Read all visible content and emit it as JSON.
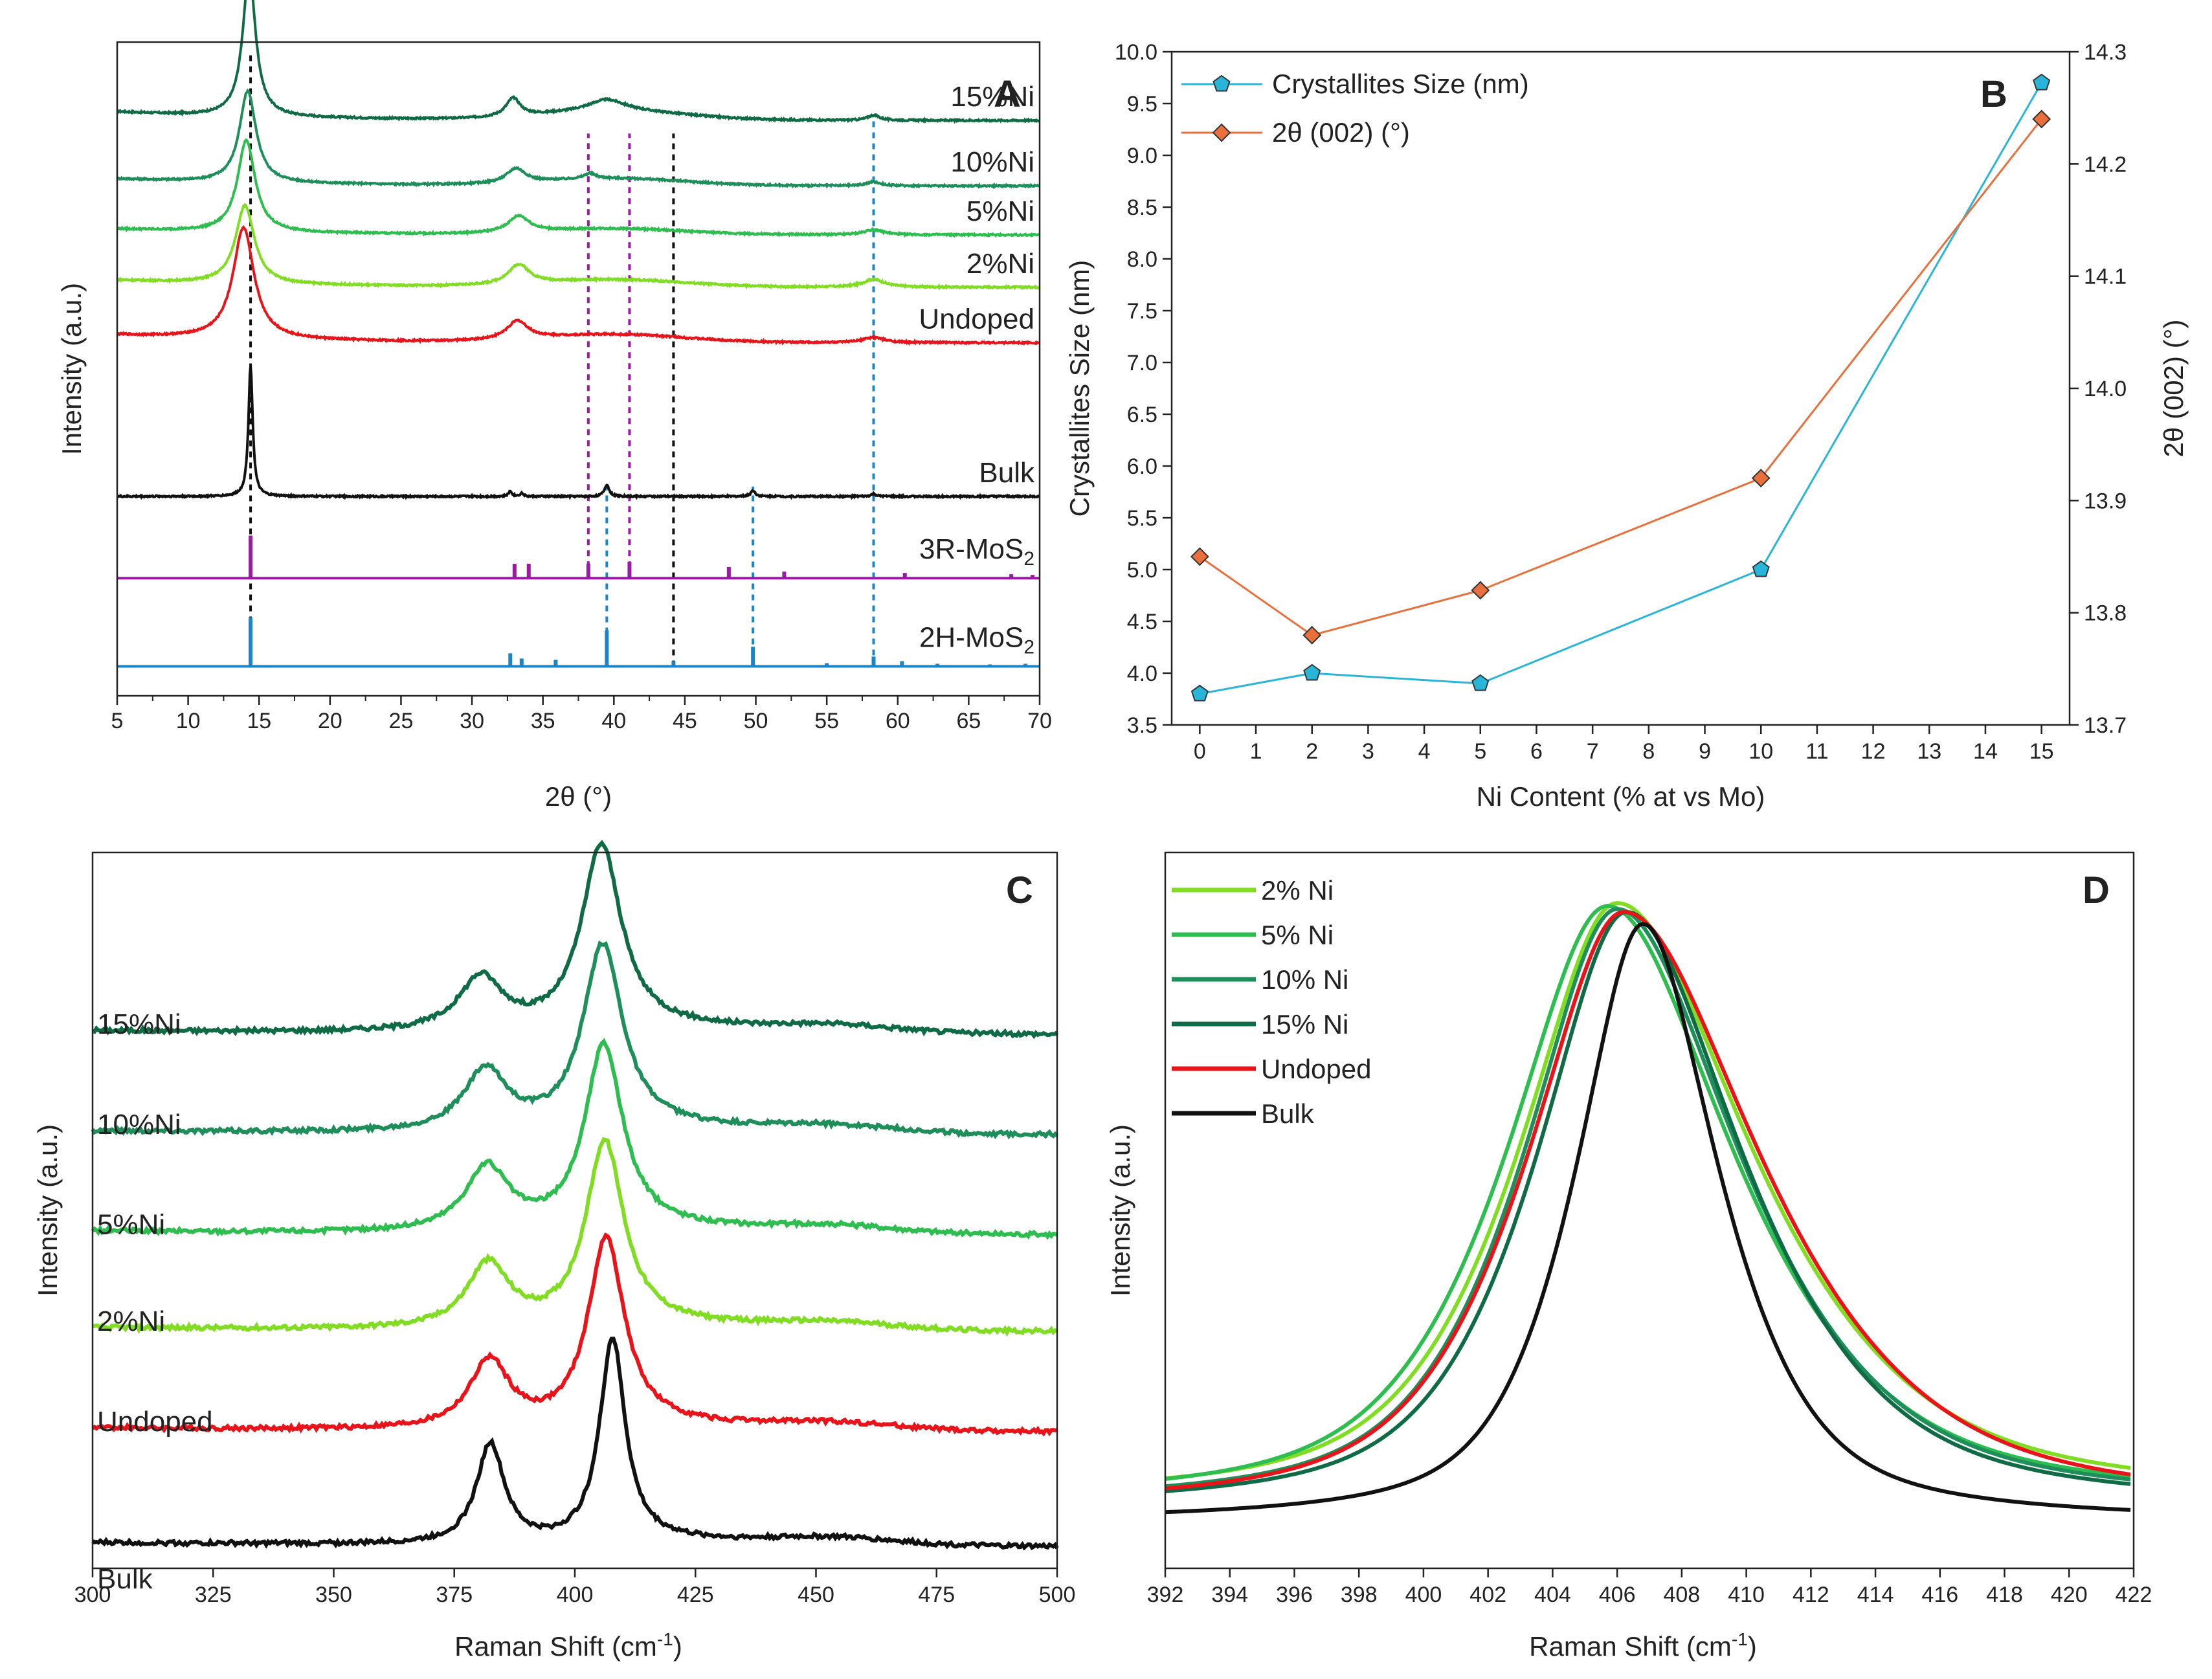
{
  "chart_data": [
    {
      "panel": "A",
      "type": "line",
      "title": "A",
      "xlabel": "2θ (°)",
      "ylabel": "Intensity (a.u.)",
      "xlim": [
        5,
        70
      ],
      "xticks": [
        5,
        10,
        15,
        20,
        25,
        30,
        35,
        40,
        45,
        50,
        55,
        60,
        65,
        70
      ],
      "series": [
        {
          "name": "15%Ni",
          "label": "15%Ni",
          "color": "#0f6b45",
          "baseline": 0.88,
          "peaks": [
            {
              "x": 14.3,
              "h": 0.22,
              "w": 0.55
            },
            {
              "x": 32.9,
              "h": 0.028,
              "w": 0.6
            },
            {
              "x": 39.5,
              "h": 0.018,
              "w": 1.6
            },
            {
              "x": 58.3,
              "h": 0.008,
              "w": 0.5
            }
          ],
          "bump": 0.022
        },
        {
          "name": "10%Ni",
          "label": "10%Ni",
          "color": "#1e8f5a",
          "baseline": 0.78,
          "peaks": [
            {
              "x": 14.2,
              "h": 0.14,
              "w": 0.7
            },
            {
              "x": 33.1,
              "h": 0.022,
              "w": 0.8
            },
            {
              "x": 38.3,
              "h": 0.008,
              "w": 0.5
            },
            {
              "x": 58.3,
              "h": 0.006,
              "w": 0.6
            }
          ],
          "bump": 0.018
        },
        {
          "name": "5%Ni",
          "label": "5%Ni",
          "color": "#2ebd4f",
          "baseline": 0.705,
          "peaks": [
            {
              "x": 14.1,
              "h": 0.14,
              "w": 0.75
            },
            {
              "x": 33.3,
              "h": 0.025,
              "w": 0.9
            },
            {
              "x": 58.3,
              "h": 0.008,
              "w": 0.8
            }
          ],
          "bump": 0.015
        },
        {
          "name": "2%Ni",
          "label": "2%Ni",
          "color": "#80dd22",
          "baseline": 0.625,
          "peaks": [
            {
              "x": 14.0,
              "h": 0.12,
              "w": 0.8
            },
            {
              "x": 33.3,
              "h": 0.03,
              "w": 0.9
            },
            {
              "x": 58.3,
              "h": 0.012,
              "w": 0.9
            }
          ],
          "bump": 0.018
        },
        {
          "name": "Undoped",
          "label": "Undoped",
          "color": "#e8141a",
          "baseline": 0.54,
          "peaks": [
            {
              "x": 13.9,
              "h": 0.17,
              "w": 0.9
            },
            {
              "x": 33.2,
              "h": 0.028,
              "w": 0.9
            },
            {
              "x": 58.3,
              "h": 0.008,
              "w": 0.9
            }
          ],
          "bump": 0.02
        },
        {
          "name": "Bulk",
          "label": "Bulk",
          "color": "#111111",
          "baseline": 0.305,
          "peaks": [
            {
              "x": 14.4,
              "h": 0.2,
              "w": 0.18
            },
            {
              "x": 32.7,
              "h": 0.008,
              "w": 0.15
            },
            {
              "x": 33.5,
              "h": 0.005,
              "w": 0.15
            },
            {
              "x": 39.5,
              "h": 0.018,
              "w": 0.2
            },
            {
              "x": 49.8,
              "h": 0.009,
              "w": 0.2
            },
            {
              "x": 58.3,
              "h": 0.004,
              "w": 0.2
            }
          ],
          "bump": 0.0
        }
      ],
      "references": [
        {
          "name": "3R-MoS",
          "subscript": "2",
          "color": "#9a1aa4",
          "baseline": 0.18,
          "sticks": [
            [
              14.4,
              0.065
            ],
            [
              33.0,
              0.022
            ],
            [
              34.0,
              0.022
            ],
            [
              38.2,
              0.022
            ],
            [
              41.1,
              0.025
            ],
            [
              48.1,
              0.017
            ],
            [
              52.0,
              0.01
            ],
            [
              60.5,
              0.008
            ],
            [
              68.0,
              0.006
            ],
            [
              69.5,
              0.005
            ]
          ]
        },
        {
          "name": "2H-MoS",
          "subscript": "2",
          "color": "#1a86c8",
          "baseline": 0.045,
          "sticks": [
            [
              14.4,
              0.075
            ],
            [
              32.7,
              0.02
            ],
            [
              33.5,
              0.012
            ],
            [
              35.9,
              0.01
            ],
            [
              39.5,
              0.055
            ],
            [
              44.2,
              0.008
            ],
            [
              49.8,
              0.03
            ],
            [
              55.0,
              0.005
            ],
            [
              58.3,
              0.015
            ],
            [
              60.3,
              0.008
            ],
            [
              62.8,
              0.004
            ],
            [
              66.5,
              0.003
            ],
            [
              69.0,
              0.004
            ]
          ]
        }
      ],
      "guides": [
        {
          "x": 14.4,
          "color": "#111111",
          "from": 0.045,
          "to": 0.98
        },
        {
          "x": 38.2,
          "color": "#9a1aa4",
          "from": 0.18,
          "to": 0.86
        },
        {
          "x": 41.1,
          "color": "#9a1aa4",
          "from": 0.18,
          "to": 0.86
        },
        {
          "x": 44.2,
          "color": "#111111",
          "from": 0.045,
          "to": 0.86
        },
        {
          "x": 39.5,
          "color": "#1a86c8",
          "from": 0.045,
          "to": 0.32
        },
        {
          "x": 49.8,
          "color": "#1a86c8",
          "from": 0.045,
          "to": 0.32
        },
        {
          "x": 58.3,
          "color": "#1a86c8",
          "from": 0.045,
          "to": 0.88
        }
      ]
    },
    {
      "panel": "B",
      "type": "line",
      "title": "B",
      "xlabel": "Ni Content (% at vs Mo)",
      "ylabel": "Crystallites Size (nm)",
      "ylabel_right": "2θ (002) (°)",
      "xlim": [
        -0.5,
        15.5
      ],
      "ylim": [
        3.5,
        10.0
      ],
      "ylim_right": [
        13.7,
        14.3
      ],
      "xticks": [
        0,
        1,
        2,
        3,
        4,
        5,
        6,
        7,
        8,
        9,
        10,
        11,
        12,
        13,
        14,
        15
      ],
      "yticks": [
        3.5,
        4.0,
        4.5,
        5.0,
        5.5,
        6.0,
        6.5,
        7.0,
        7.5,
        8.0,
        8.5,
        9.0,
        9.5,
        10.0
      ],
      "yticks_right": [
        13.7,
        13.8,
        13.9,
        14.0,
        14.1,
        14.2,
        14.3
      ],
      "series": [
        {
          "name": "Crystallites Size (nm)",
          "axis": "left",
          "color": "#29b5d8",
          "marker": "pentagon",
          "x": [
            0,
            2,
            5,
            10,
            15
          ],
          "y": [
            3.8,
            4.0,
            3.9,
            5.0,
            9.7
          ]
        },
        {
          "name": "2θ (002) (°)",
          "axis": "right",
          "color": "#e9703c",
          "marker": "diamond",
          "x": [
            0,
            2,
            5,
            10,
            15
          ],
          "y": [
            13.85,
            13.78,
            13.82,
            13.92,
            14.24
          ]
        }
      ],
      "legend_position": "top-left"
    },
    {
      "panel": "C",
      "type": "line",
      "title": "C",
      "xlabel": "Raman Shift (cm",
      "xlabel_sup": "-1",
      "xlabel_tail": ")",
      "ylabel": "Intensity (a.u.)",
      "xlim": [
        300,
        500
      ],
      "xticks": [
        300,
        325,
        350,
        375,
        400,
        425,
        450,
        475,
        500
      ],
      "series": [
        {
          "name": "15%Ni",
          "label": "15%Ni",
          "color": "#0f6b45",
          "baseline": 0.745,
          "e1": {
            "x": 380.5,
            "h": 0.075,
            "w": 5.5
          },
          "a1": {
            "x": 405.5,
            "h": 0.26,
            "w": 5.0
          }
        },
        {
          "name": "10%Ni",
          "label": "10%Ni",
          "color": "#1e8f5a",
          "baseline": 0.605,
          "e1": {
            "x": 381.5,
            "h": 0.085,
            "w": 5.5
          },
          "a1": {
            "x": 405.8,
            "h": 0.26,
            "w": 5.0
          }
        },
        {
          "name": "5%Ni",
          "label": "5%Ni",
          "color": "#2ebd4f",
          "baseline": 0.465,
          "e1": {
            "x": 381.8,
            "h": 0.09,
            "w": 5.5
          },
          "a1": {
            "x": 406.0,
            "h": 0.26,
            "w": 4.8
          }
        },
        {
          "name": "2%Ni",
          "label": "2%Ni",
          "color": "#80dd22",
          "baseline": 0.33,
          "e1": {
            "x": 382.0,
            "h": 0.09,
            "w": 5.3
          },
          "a1": {
            "x": 406.2,
            "h": 0.26,
            "w": 4.8
          }
        },
        {
          "name": "Undoped",
          "label": "Undoped",
          "color": "#e8141a",
          "baseline": 0.19,
          "e1": {
            "x": 382.3,
            "h": 0.095,
            "w": 5.0
          },
          "a1": {
            "x": 406.5,
            "h": 0.265,
            "w": 4.6
          }
        },
        {
          "name": "Bulk",
          "label": "Bulk",
          "color": "#111111",
          "baseline": 0.03,
          "e1": {
            "x": 382.5,
            "h": 0.14,
            "w": 3.5
          },
          "a1": {
            "x": 407.8,
            "h": 0.285,
            "w": 3.2
          }
        }
      ]
    },
    {
      "panel": "D",
      "type": "line",
      "title": "D",
      "xlabel": "Raman Shift (cm",
      "xlabel_sup": "-1",
      "xlabel_tail": ")",
      "ylabel": "Intensity (a.u.)",
      "xlim": [
        392,
        422
      ],
      "xticks": [
        392,
        394,
        396,
        398,
        400,
        402,
        404,
        406,
        408,
        410,
        412,
        414,
        416,
        418,
        420,
        422
      ],
      "series": [
        {
          "name": "2% Ni",
          "color": "#80dd22",
          "center": 406.0,
          "left_w": 3.35,
          "right_w": 4.6,
          "floor": 0.015
        },
        {
          "name": "5% Ni",
          "color": "#2ebd4f",
          "center": 405.7,
          "left_w": 3.45,
          "right_w": 4.3,
          "floor": 0.01
        },
        {
          "name": "10% Ni",
          "color": "#1e8f5a",
          "center": 406.0,
          "left_w": 3.2,
          "right_w": 4.2,
          "floor": 0.005
        },
        {
          "name": "15% Ni",
          "color": "#0f6b45",
          "center": 406.3,
          "left_w": 3.1,
          "right_w": 4.0,
          "floor": 0.0
        },
        {
          "name": "Undoped",
          "color": "#e8141a",
          "center": 406.2,
          "left_w": 3.3,
          "right_w": 4.7,
          "floor": 0.0
        },
        {
          "name": "Bulk",
          "color": "#111111",
          "center": 406.8,
          "left_w": 2.3,
          "right_w": 2.6,
          "floor": -0.02
        }
      ],
      "legend_position": "top-left"
    }
  ]
}
